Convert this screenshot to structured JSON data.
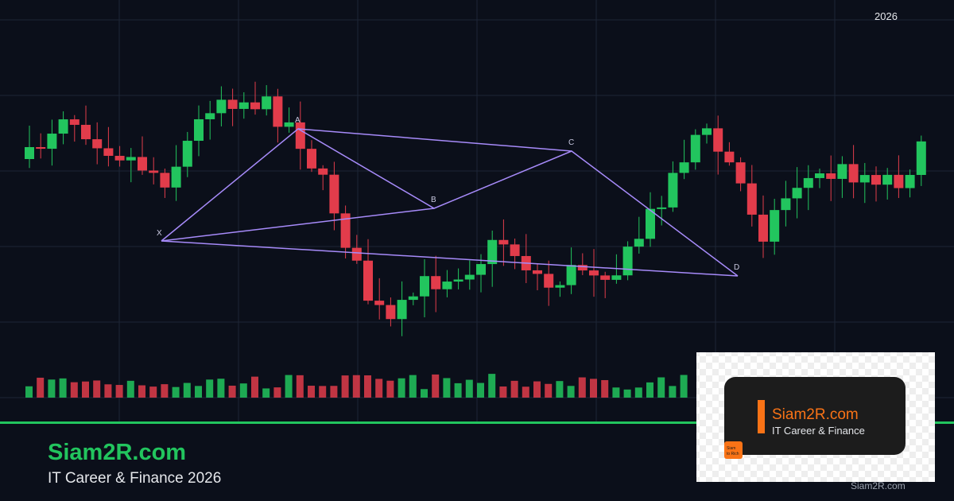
{
  "header": {
    "year": "2026"
  },
  "pattern": {
    "labels": [
      "X",
      "A",
      "B",
      "C",
      "D"
    ]
  },
  "footer": {
    "title": "Siam2R.com",
    "subtitle": "IT Career & Finance 2026"
  },
  "logo": {
    "title": "Siam2R.com",
    "subtitle": "IT Career & Finance",
    "badge": [
      "Siam",
      "to Rich"
    ],
    "watermark": "Siam2R.com"
  }
}
